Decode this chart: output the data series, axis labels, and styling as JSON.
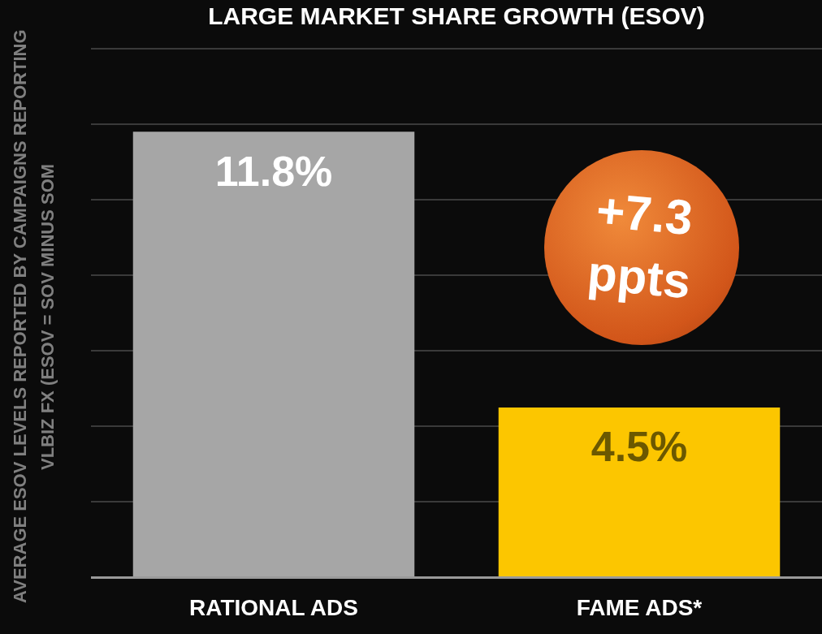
{
  "chart_data": {
    "type": "bar",
    "title": "LARGE MARKET SHARE GROWTH (ESOV)",
    "ylabel": "AVERAGE ESOV LEVELS REPORTED BY CAMPAIGNS REPORTING VLBIZ FX (ESOV = SOV MINUS SOM",
    "categories": [
      "RATIONAL ADS",
      "FAME ADS*"
    ],
    "values": [
      11.8,
      4.5
    ],
    "colors": [
      "#a6a6a6",
      "#fcc600"
    ],
    "value_labels": [
      "11.8%",
      "4.5%"
    ],
    "tick_labels": "x",
    "grid": "y",
    "annotations": [
      "+7.3 ppts"
    ]
  }
}
